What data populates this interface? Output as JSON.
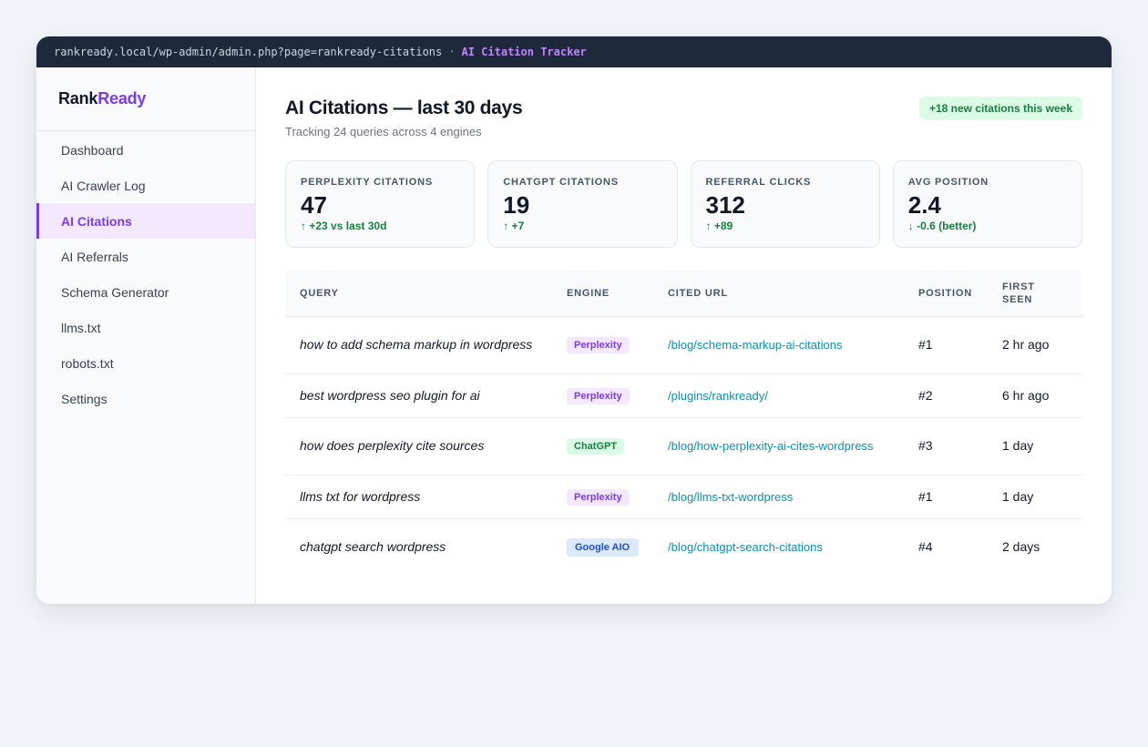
{
  "browser": {
    "url": "rankready.local/wp-admin/admin.php?page=rankready-citations",
    "separator": "·",
    "page_label": "AI Citation Tracker"
  },
  "brand": {
    "part1": "Rank",
    "part2": "Ready",
    "accent_color": "#7c3aed"
  },
  "sidebar": {
    "items": [
      {
        "label": "Dashboard",
        "active": false
      },
      {
        "label": "AI Crawler Log",
        "active": false
      },
      {
        "label": "AI Citations",
        "active": true
      },
      {
        "label": "AI Referrals",
        "active": false
      },
      {
        "label": "Schema Generator",
        "active": false
      },
      {
        "label": "llms.txt",
        "active": false
      },
      {
        "label": "robots.txt",
        "active": false
      },
      {
        "label": "Settings",
        "active": false
      }
    ]
  },
  "header": {
    "title": "AI Citations — last 30 days",
    "subtitle": "Tracking 24 queries across 4 engines",
    "badge": "+18 new citations this week"
  },
  "stats": [
    {
      "label": "Perplexity citations",
      "value": "47",
      "delta": "↑ +23 vs last 30d"
    },
    {
      "label": "ChatGPT citations",
      "value": "19",
      "delta": "↑ +7"
    },
    {
      "label": "Referral clicks",
      "value": "312",
      "delta": "↑ +89"
    },
    {
      "label": "Avg position",
      "value": "2.4",
      "delta": "↓ -0.6 (better)"
    }
  ],
  "table": {
    "columns": [
      "Query",
      "Engine",
      "Cited URL",
      "Position",
      "First seen"
    ],
    "rows": [
      {
        "query": "how to add schema markup in wordpress",
        "engine": "Perplexity",
        "url": "/blog/schema-markup-ai-citations",
        "position": "#1",
        "first_seen": "2 hr ago"
      },
      {
        "query": "best wordpress seo plugin for ai",
        "engine": "Perplexity",
        "url": "/plugins/rankready/",
        "position": "#2",
        "first_seen": "6 hr ago"
      },
      {
        "query": "how does perplexity cite sources",
        "engine": "ChatGPT",
        "url": "/blog/how-perplexity-ai-cites-wordpress",
        "position": "#3",
        "first_seen": "1 day"
      },
      {
        "query": "llms txt for wordpress",
        "engine": "Perplexity",
        "url": "/blog/llms-txt-wordpress",
        "position": "#1",
        "first_seen": "1 day"
      },
      {
        "query": "chatgpt search wordpress",
        "engine": "Google AIO",
        "url": "/blog/chatgpt-search-citations",
        "position": "#4",
        "first_seen": "2 days"
      }
    ]
  }
}
